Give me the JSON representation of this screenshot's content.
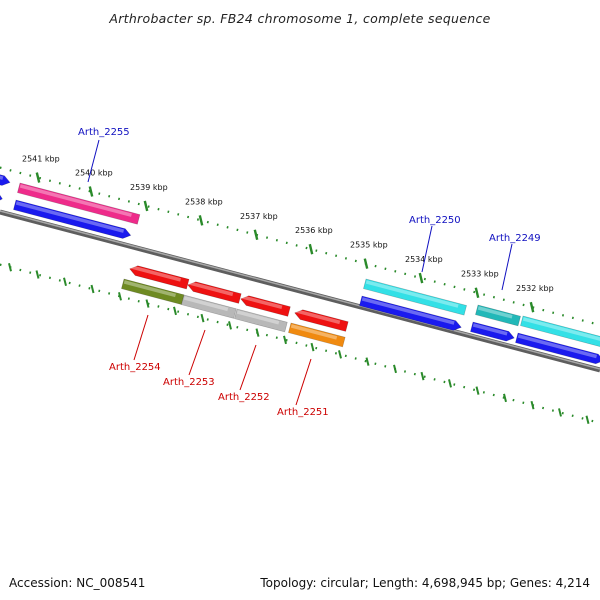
{
  "title": "Arthrobacter sp. FB24 chromosome 1, complete sequence",
  "footer": {
    "accession": "Accession: NC_008541",
    "summary": "Topology: circular; Length: 4,698,945 bp; Genes: 4,214"
  },
  "ticks": [
    "2541 kbp",
    "2540 kbp",
    "2539 kbp",
    "2538 kbp",
    "2537 kbp",
    "2536 kbp",
    "2535 kbp",
    "2534 kbp",
    "2533 kbp",
    "2532 kbp"
  ],
  "gene_labels": {
    "forward": [
      "Arth_2255",
      "Arth_2250",
      "Arth_2249"
    ],
    "reverse": [
      "Arth_2254",
      "Arth_2253",
      "Arth_2252",
      "Arth_2251"
    ]
  },
  "colors": {
    "forward_label": "#1010c0",
    "reverse_label": "#cc0000",
    "backbone": "#777777",
    "tick": "#2a8a2a",
    "cds_blue": "#1a1aee",
    "magenta": "#ee2b8a",
    "cyan": "#33e0e6",
    "teal": "#22b8b8",
    "red": "#ee1111",
    "olive": "#6e8a22",
    "gray": "#b8b8b8",
    "orange": "#f08a10"
  }
}
